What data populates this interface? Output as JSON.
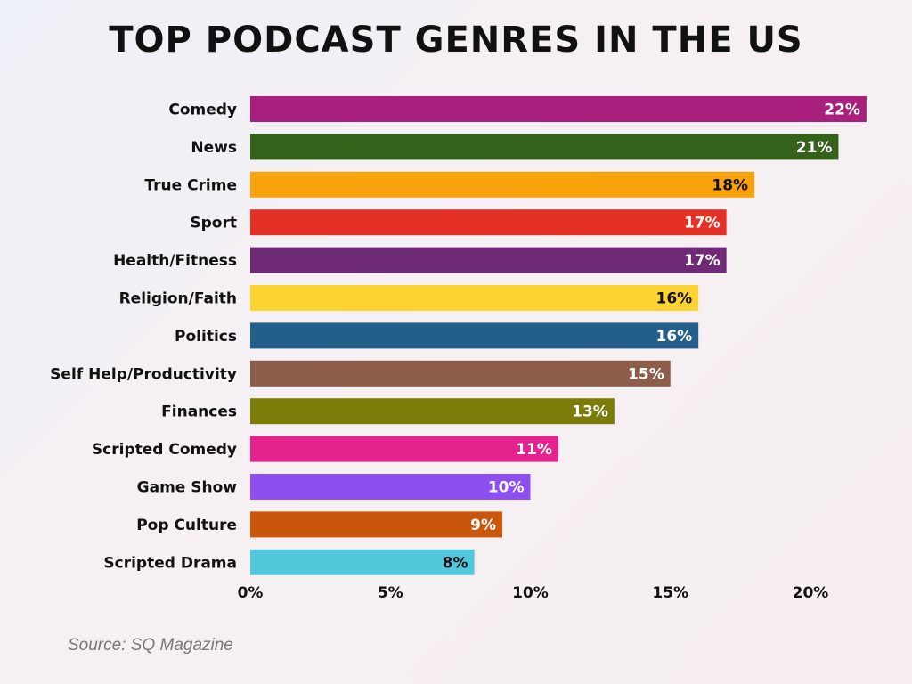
{
  "chart_data": {
    "type": "bar",
    "orientation": "horizontal",
    "title": "TOP PODCAST GENRES IN THE US",
    "categories": [
      "Comedy",
      "News",
      "True Crime",
      "Sport",
      "Health/Fitness",
      "Religion/Faith",
      "Politics",
      "Self Help/Productivity",
      "Finances",
      "Scripted Comedy",
      "Game Show",
      "Pop Culture",
      "Scripted Drama"
    ],
    "values": [
      22,
      21,
      18,
      17,
      17,
      16,
      16,
      15,
      13,
      11,
      10,
      9,
      8
    ],
    "data_labels": [
      "22%",
      "21%",
      "18%",
      "17%",
      "17%",
      "16%",
      "16%",
      "15%",
      "13%",
      "11%",
      "10%",
      "9%",
      "8%"
    ],
    "colors": [
      "#a81f7d",
      "#35621a",
      "#f8a30c",
      "#e53026",
      "#6e2a74",
      "#fdd332",
      "#245f8b",
      "#8c5e49",
      "#7b7d08",
      "#e5238e",
      "#8d4ff0",
      "#c9560b",
      "#53c7db"
    ],
    "label_colors": [
      "#ffffff",
      "#ffffff",
      "#111111",
      "#ffffff",
      "#ffffff",
      "#111111",
      "#ffffff",
      "#ffffff",
      "#ffffff",
      "#ffffff",
      "#ffffff",
      "#ffffff",
      "#111111"
    ],
    "xticks": [
      "0%",
      "5%",
      "10%",
      "15%",
      "20%"
    ],
    "xtick_values": [
      0,
      5,
      10,
      15,
      20
    ],
    "xlim": [
      0,
      22
    ],
    "xlabel": "",
    "ylabel": "",
    "grid": false,
    "legend": "none"
  },
  "source": "Source: SQ Magazine"
}
